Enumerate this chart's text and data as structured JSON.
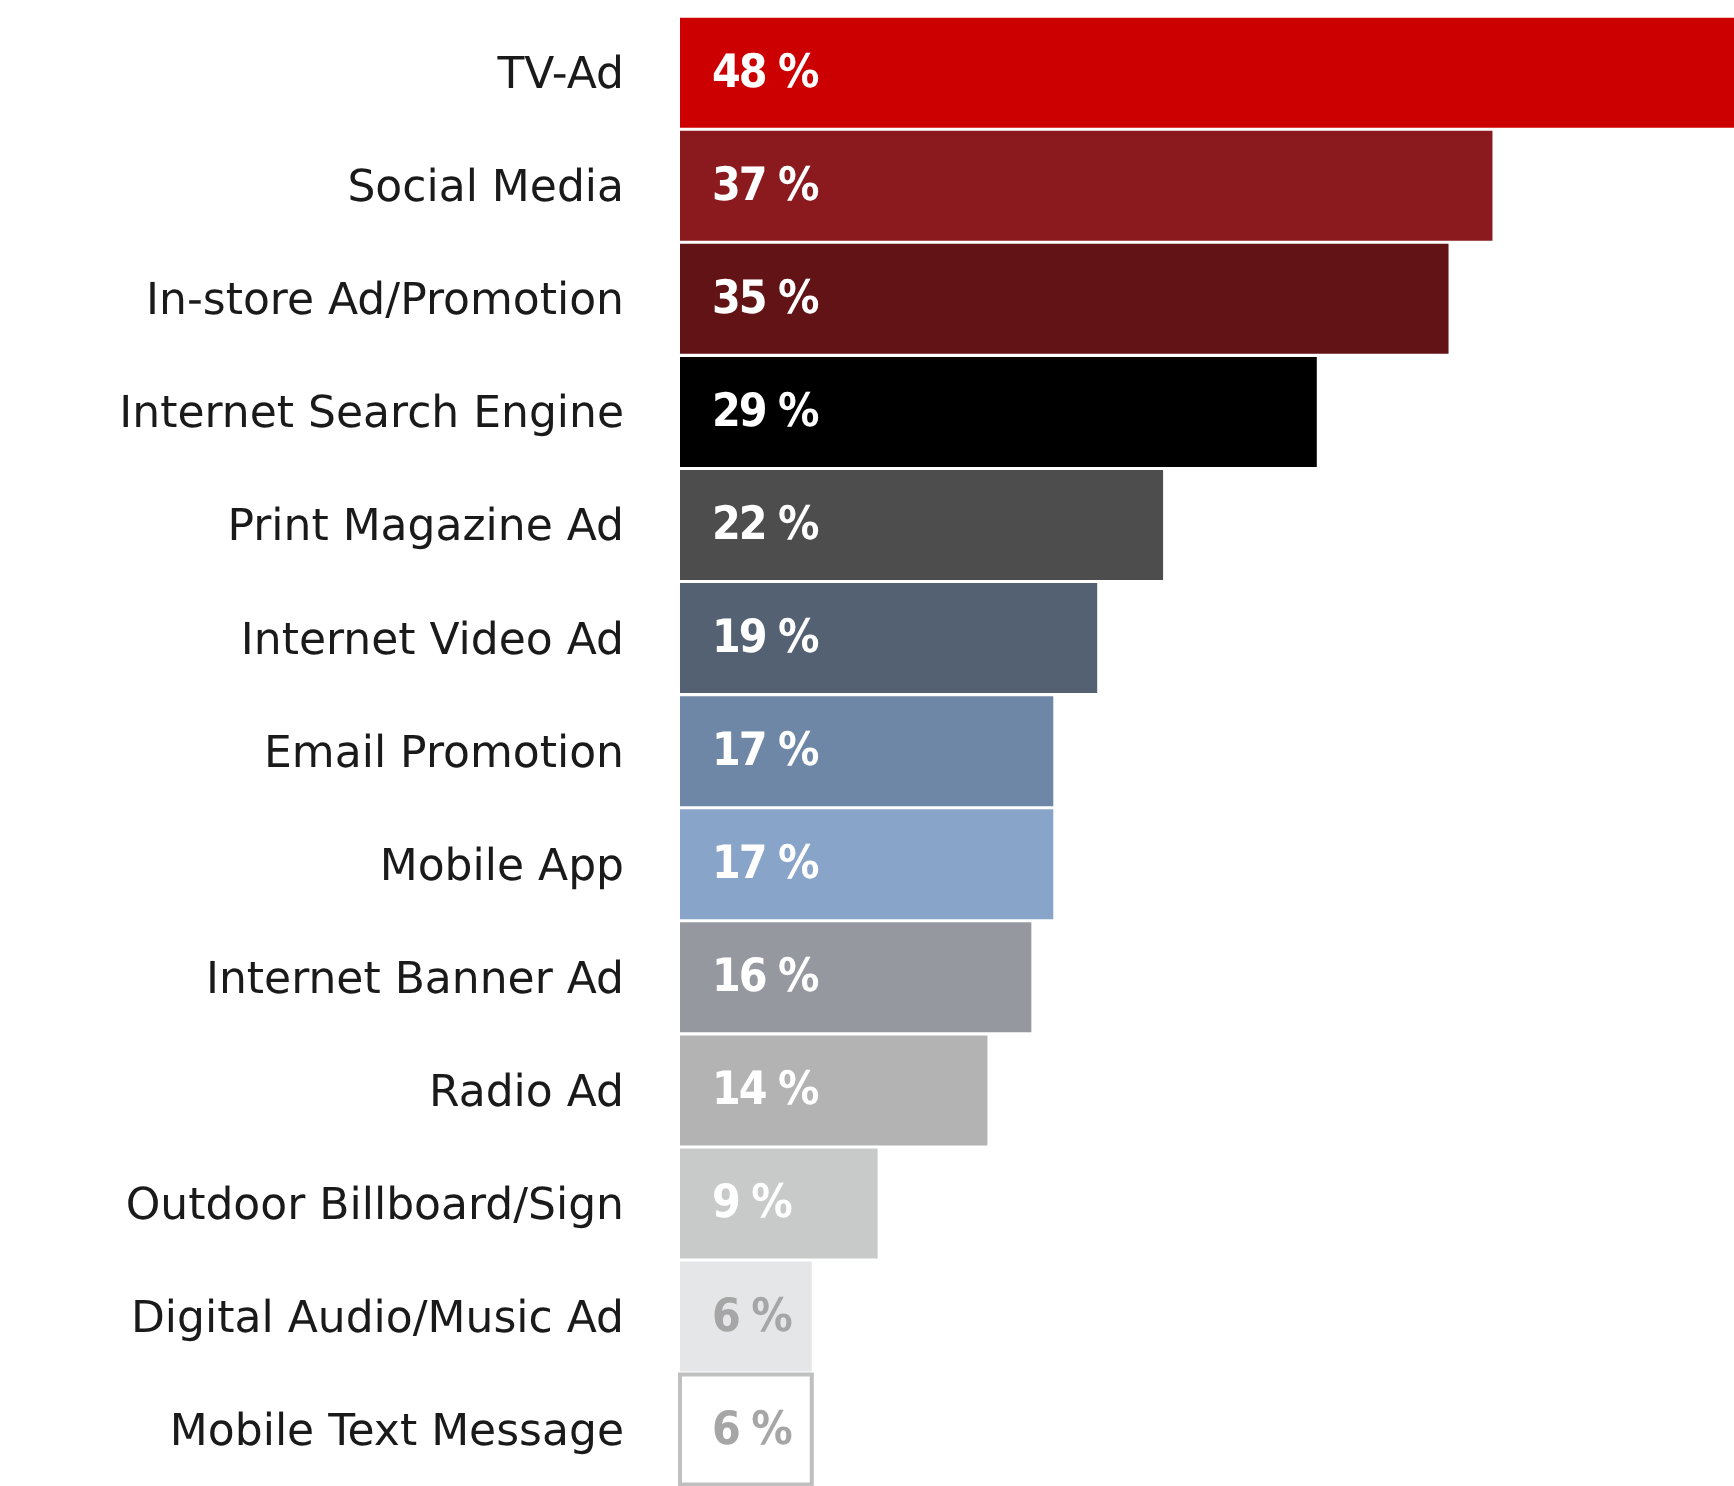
{
  "chart_data": {
    "type": "bar",
    "orientation": "horizontal",
    "relative": false,
    "categories": [
      "TV-Ad",
      "Social Media",
      "In-store Ad/Promotion",
      "Internet Search Engine",
      "Print Magazine Ad",
      "Internet Video Ad",
      "Email Promotion",
      "Mobile App",
      "Internet Banner Ad",
      "Radio Ad",
      "Outdoor Billboard/Sign",
      "Digital Audio/Music Ad",
      "Mobile Text Message"
    ],
    "values": [
      48,
      37,
      35,
      29,
      22,
      19,
      17,
      17,
      16,
      14,
      9,
      6,
      6
    ],
    "value_labels": [
      "48 %",
      "37 %",
      "35 %",
      "29 %",
      "22 %",
      "19 %",
      "17 %",
      "17 %",
      "16 %",
      "14 %",
      "9 %",
      "6 %",
      "6 %"
    ],
    "colors": [
      "#cc0000",
      "#8a1a1e",
      "#621316",
      "#000000",
      "#4d4d4d",
      "#536172",
      "#6f87a6",
      "#88a4c8",
      "#95989f",
      "#b3b3b3",
      "#c8c9c9",
      "#e4e6e7",
      "#ffffff"
    ],
    "grid": false,
    "legend": false
  }
}
